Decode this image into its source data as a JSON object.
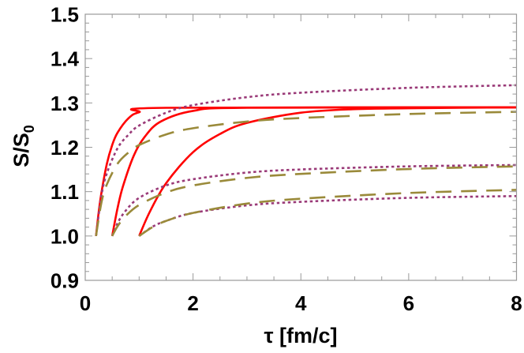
{
  "chart_data": {
    "type": "line",
    "title": "",
    "xlabel": "τ [fm/c]",
    "ylabel_main": "S/S",
    "ylabel_sub": "0",
    "xlim": [
      0,
      8
    ],
    "ylim": [
      0.9,
      1.5
    ],
    "x_ticks": [
      "0",
      "2",
      "4",
      "6",
      "8"
    ],
    "y_ticks": [
      "0.9",
      "1.0",
      "1.1",
      "1.2",
      "1.3",
      "1.4",
      "1.5"
    ],
    "x_minor_step": 0.5,
    "y_minor_step": 0.02,
    "grid": false,
    "legend": "none",
    "colors": {
      "solid": "#ff0000",
      "dotted": "#9a3a78",
      "dashed": "#9a8a3a"
    },
    "series": [
      {
        "style": "solid",
        "x": [
          0.2,
          0.25,
          0.3,
          0.4,
          0.5,
          0.6,
          0.8,
          1.0,
          1.5,
          8
        ],
        "y": [
          1.0,
          1.054,
          1.097,
          1.162,
          1.205,
          1.233,
          1.265,
          1.279,
          1.289,
          1.29
        ]
      },
      {
        "style": "solid",
        "x": [
          0.5,
          0.6,
          0.7,
          0.9,
          1.1,
          1.4,
          2.0,
          3.0,
          8
        ],
        "y": [
          1.0,
          1.063,
          1.112,
          1.181,
          1.223,
          1.258,
          1.282,
          1.289,
          1.29
        ]
      },
      {
        "style": "solid",
        "x": [
          1.0,
          1.2,
          1.5,
          2.0,
          2.5,
          3.0,
          4.0,
          5.0,
          6.0,
          8
        ],
        "y": [
          1.0,
          1.055,
          1.119,
          1.189,
          1.23,
          1.255,
          1.278,
          1.286,
          1.288,
          1.29
        ]
      },
      {
        "style": "dotted",
        "x": [
          0.2,
          0.3,
          0.4,
          0.6,
          0.8,
          1.0,
          1.5,
          2,
          3,
          4,
          6,
          8
        ],
        "y": [
          1.0,
          1.091,
          1.141,
          1.198,
          1.228,
          1.249,
          1.278,
          1.295,
          1.313,
          1.323,
          1.334,
          1.34
        ]
      },
      {
        "style": "dashed",
        "x": [
          0.2,
          0.3,
          0.4,
          0.6,
          0.8,
          1.0,
          1.5,
          2,
          3,
          4,
          6,
          8
        ],
        "y": [
          1.0,
          1.075,
          1.116,
          1.163,
          1.188,
          1.205,
          1.229,
          1.243,
          1.258,
          1.266,
          1.275,
          1.28
        ]
      },
      {
        "style": "dotted",
        "x": [
          0.5,
          0.6,
          0.75,
          1,
          1.5,
          2,
          3,
          4,
          6,
          8
        ],
        "y": [
          1.0,
          1.029,
          1.057,
          1.086,
          1.114,
          1.128,
          1.143,
          1.15,
          1.157,
          1.16
        ]
      },
      {
        "style": "dashed",
        "x": [
          0.5,
          0.6,
          0.75,
          1,
          1.5,
          2,
          3,
          4,
          6,
          8
        ],
        "y": [
          1.0,
          1.022,
          1.045,
          1.07,
          1.098,
          1.114,
          1.131,
          1.14,
          1.151,
          1.157
        ]
      },
      {
        "style": "dotted",
        "x": [
          1,
          1.25,
          1.5,
          2,
          3,
          4,
          6,
          8
        ],
        "y": [
          1.0,
          1.021,
          1.034,
          1.052,
          1.069,
          1.077,
          1.086,
          1.09
        ]
      },
      {
        "style": "dashed",
        "x": [
          1,
          1.25,
          1.5,
          2,
          3,
          4,
          6,
          8
        ],
        "y": [
          1.0,
          1.02,
          1.034,
          1.052,
          1.073,
          1.084,
          1.097,
          1.104
        ]
      }
    ]
  }
}
